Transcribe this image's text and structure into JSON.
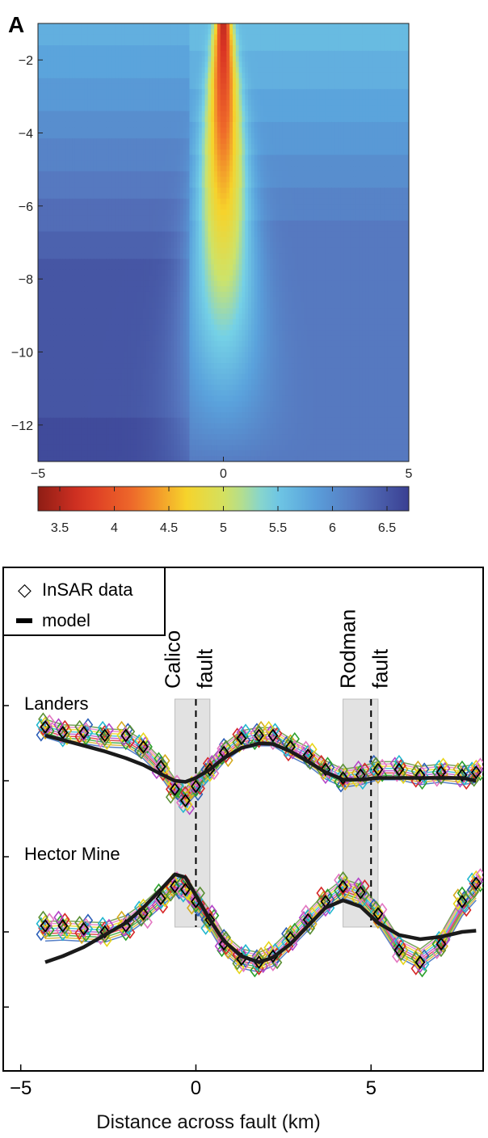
{
  "panel_label": "A",
  "chart_data": [
    {
      "type": "heatmap",
      "title": "",
      "xlabel": "",
      "ylabel": "",
      "xlim": [
        -5,
        5
      ],
      "ylim": [
        -13,
        -1
      ],
      "x_ticks": [
        "−5",
        "0",
        "5"
      ],
      "y_ticks": [
        "−2",
        "−4",
        "−6",
        "−8",
        "−10",
        "−12"
      ],
      "y_tick_values": [
        -2,
        -4,
        -6,
        -8,
        -10,
        -12
      ],
      "colorbar": {
        "colormap": "jet (reversed)",
        "range": [
          3.3,
          6.7
        ],
        "ticks": [
          "3.5",
          "4",
          "4.5",
          "5",
          "5.5",
          "6",
          "6.5"
        ],
        "tick_values": [
          3.5,
          4,
          4.5,
          5,
          5.5,
          6,
          6.5
        ]
      },
      "field": {
        "description_of_values": "low values (~3.3) in a narrow V-shaped zone centred at x = 0, widening toward the surface; higher values increasing with depth away from the fault",
        "center_x": 0,
        "min_value": 3.3,
        "max_value": 6.7
      }
    },
    {
      "type": "scatter",
      "xlabel": "Distance across fault (km)",
      "xlim": [
        -5.5,
        8.2
      ],
      "x_ticks": [
        "−5",
        "0",
        "5"
      ],
      "x_tick_values": [
        -5,
        0,
        5
      ],
      "legend": {
        "placement": "top-left",
        "entries": [
          {
            "symbol": "◇",
            "label": "InSAR data"
          },
          {
            "symbol": "line",
            "label": "model"
          }
        ]
      },
      "fault_zones": [
        {
          "label_line1": "Calico",
          "label_line2": "fault",
          "x_center": 0,
          "x_range": [
            -0.6,
            0.4
          ]
        },
        {
          "label_line1": "Rodman",
          "label_line2": "fault",
          "x_center": 5,
          "x_range": [
            4.2,
            5.2
          ]
        }
      ],
      "profiles": [
        {
          "name": "Landers",
          "x": [
            -4.3,
            -3.8,
            -3.2,
            -2.6,
            -2.0,
            -1.5,
            -1.0,
            -0.6,
            -0.3,
            0.0,
            0.4,
            0.8,
            1.3,
            1.8,
            2.2,
            2.7,
            3.2,
            3.7,
            4.2,
            4.7,
            5.2,
            5.8,
            6.4,
            7.0,
            7.6,
            8.0
          ],
          "data_mean": [
            0.95,
            0.85,
            0.85,
            0.8,
            0.8,
            0.6,
            0.25,
            -0.15,
            -0.35,
            -0.1,
            0.2,
            0.5,
            0.75,
            0.8,
            0.8,
            0.6,
            0.45,
            0.2,
            0.05,
            0.1,
            0.2,
            0.2,
            0.1,
            0.15,
            0.1,
            0.15
          ],
          "model": [
            0.8,
            0.72,
            0.62,
            0.52,
            0.4,
            0.28,
            0.12,
            0.0,
            -0.02,
            0.05,
            0.2,
            0.4,
            0.58,
            0.66,
            0.65,
            0.52,
            0.34,
            0.15,
            0.02,
            0.02,
            0.05,
            0.05,
            0.05,
            0.05,
            0.05,
            0.0
          ]
        },
        {
          "name": "Hector Mine",
          "x": [
            -4.3,
            -3.8,
            -3.2,
            -2.6,
            -2.0,
            -1.5,
            -1.0,
            -0.6,
            -0.3,
            0.0,
            0.4,
            0.8,
            1.3,
            1.8,
            2.2,
            2.7,
            3.2,
            3.7,
            4.2,
            4.7,
            5.2,
            5.8,
            6.4,
            7.0,
            7.6,
            8.0
          ],
          "data_mean": [
            0.1,
            0.1,
            0.05,
            0.0,
            0.1,
            0.3,
            0.55,
            0.75,
            0.7,
            0.5,
            0.2,
            -0.2,
            -0.45,
            -0.5,
            -0.4,
            -0.1,
            0.2,
            0.5,
            0.75,
            0.65,
            0.3,
            -0.3,
            -0.5,
            -0.2,
            0.5,
            0.8
          ],
          "model": [
            -0.5,
            -0.4,
            -0.25,
            -0.05,
            0.15,
            0.4,
            0.7,
            0.95,
            0.9,
            0.6,
            0.2,
            -0.15,
            -0.4,
            -0.5,
            -0.42,
            -0.2,
            0.1,
            0.4,
            0.52,
            0.42,
            0.15,
            -0.05,
            -0.12,
            -0.08,
            0.0,
            0.02
          ]
        }
      ],
      "colors": [
        "#2c5fb8",
        "#d4aa1d",
        "#2ba02b",
        "#d62728",
        "#b444c8",
        "#22b7cf",
        "#e7d61b",
        "#e377c2",
        "#5a8f34"
      ]
    }
  ]
}
